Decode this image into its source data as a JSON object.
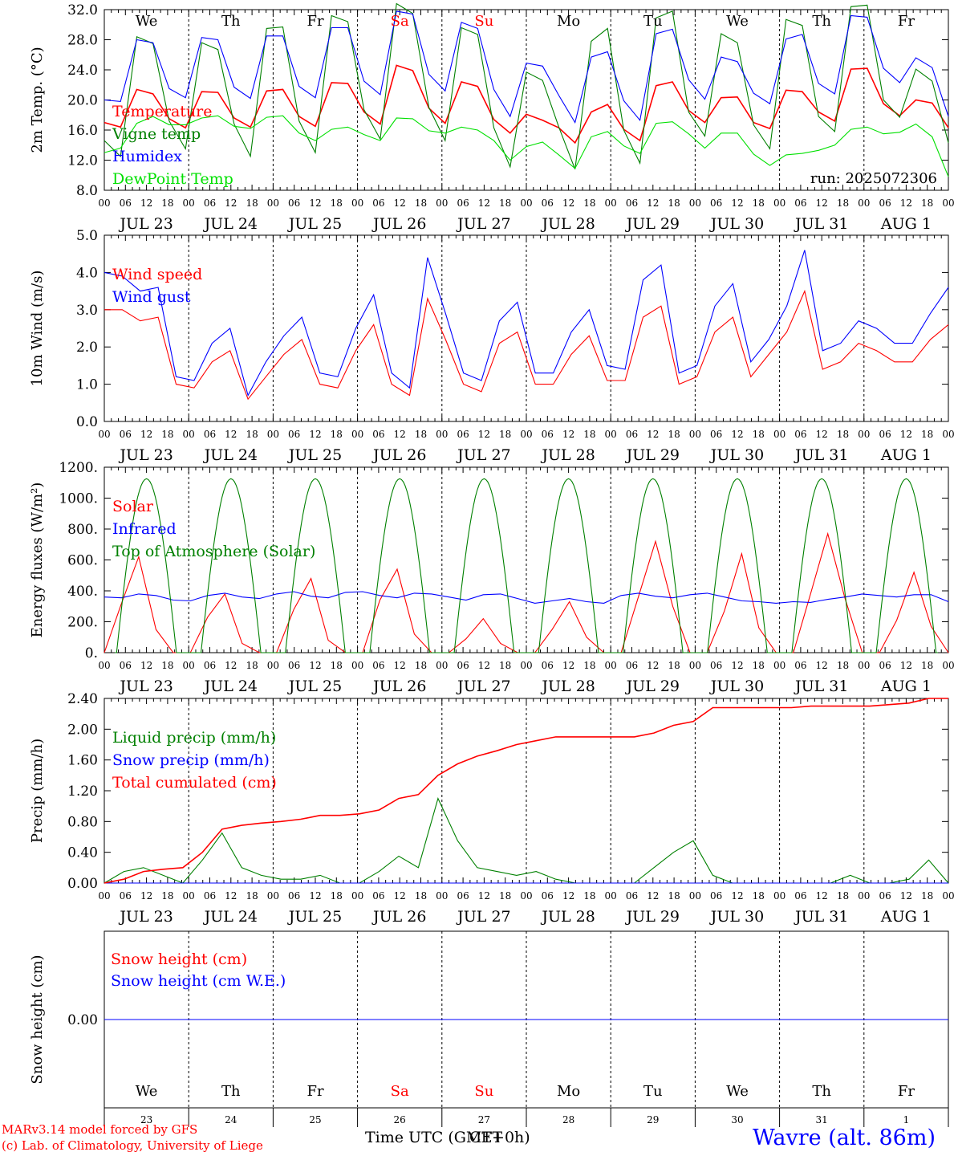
{
  "run_label": "run: 2025072306",
  "date_labels": [
    "JUL 23",
    "JUL 24",
    "JUL 25",
    "JUL 26",
    "JUL 27",
    "JUL 28",
    "JUL 29",
    "JUL 30",
    "JUL 31",
    "AUG  1"
  ],
  "hour_labels": [
    "00",
    "06",
    "12",
    "18"
  ],
  "last_hour_label": "00",
  "weekdays": [
    "We",
    "Th",
    "Fr",
    "Sa",
    "Su",
    "Mo",
    "Tu",
    "We",
    "Th",
    "Fr"
  ],
  "weekend_days": [
    "Sa",
    "Su"
  ],
  "day_numbers": [
    "23",
    "24",
    "25",
    "26",
    "27",
    "28",
    "29",
    "30",
    "31",
    "1"
  ],
  "footer": {
    "model_line": "MARv3.14 model forced by GFS",
    "credit_line": "(c) Lab. of Climatology, University of Liege",
    "time_axis_label": "Time UTC (GMT+0h)",
    "time_axis_overprint": "CET",
    "location": "Wavre (alt. 86m)"
  },
  "colors": {
    "red": "#ff0000",
    "green": "#008000",
    "blue": "#0000ff",
    "lime": "#00e000",
    "weekend": "#ff0000",
    "footer_red": "#ff0000",
    "location_blue": "#0000ff"
  },
  "chart_data": [
    {
      "type": "line",
      "ylabel": "2m Temp. (°C)",
      "ylim": [
        8,
        32
      ],
      "yticks": [
        "8.0",
        "12.0",
        "16.0",
        "20.0",
        "24.0",
        "28.0",
        "32.0"
      ],
      "x_start": "2025-07-23T00:00Z",
      "x_step_hours": 6,
      "series": [
        {
          "name": "Temperature",
          "color": "#ff0000",
          "values": [
            17.0,
            16.4,
            21.4,
            20.8,
            17.5,
            16.3,
            21.1,
            21.0,
            17.6,
            16.4,
            21.2,
            21.4,
            17.8,
            16.5,
            22.3,
            22.2,
            18.4,
            16.8,
            24.6,
            23.9,
            18.9,
            16.9,
            22.4,
            21.8,
            17.4,
            15.6,
            18.1,
            17.3,
            16.3,
            14.3,
            18.4,
            19.4,
            16.1,
            14.6,
            21.9,
            22.4,
            18.6,
            17.0,
            20.3,
            20.4,
            17.0,
            16.2,
            21.3,
            21.1,
            18.4,
            17.2,
            24.1,
            24.2,
            19.5,
            17.9,
            20.0,
            19.6,
            16.3
          ]
        },
        {
          "name": "Vigne temp",
          "color": "#008000",
          "values": [
            14.6,
            12.5,
            28.4,
            27.5,
            17.2,
            13.5,
            27.6,
            26.7,
            16.8,
            12.5,
            29.5,
            29.7,
            17.2,
            13.0,
            31.2,
            30.4,
            18.7,
            14.8,
            32.8,
            31.5,
            19.0,
            14.6,
            29.6,
            28.7,
            16.3,
            11.1,
            23.7,
            22.6,
            16.4,
            10.8,
            27.8,
            29.5,
            16.0,
            11.6,
            30.9,
            31.8,
            18.4,
            15.2,
            28.8,
            27.6,
            16.7,
            13.5,
            30.7,
            29.9,
            17.8,
            15.8,
            32.4,
            32.6,
            20.0,
            17.7,
            24.1,
            22.5,
            14.3
          ]
        },
        {
          "name": "Humidex",
          "color": "#0000ff",
          "values": [
            20.0,
            19.8,
            28.0,
            27.6,
            21.5,
            20.3,
            28.3,
            28.0,
            21.7,
            20.2,
            28.5,
            28.5,
            21.8,
            20.3,
            29.6,
            29.6,
            22.5,
            20.7,
            31.8,
            31.4,
            23.4,
            21.2,
            30.3,
            29.5,
            21.4,
            17.8,
            24.9,
            24.5,
            20.6,
            17.0,
            25.7,
            26.4,
            19.9,
            17.3,
            28.8,
            29.4,
            22.7,
            20.1,
            25.7,
            25.1,
            20.9,
            19.5,
            28.1,
            28.7,
            22.2,
            20.8,
            31.2,
            31.0,
            24.2,
            22.3,
            25.6,
            24.3,
            17.8
          ]
        },
        {
          "name": "DewPoint Temp",
          "color": "#00e000",
          "values": [
            13.0,
            13.6,
            16.9,
            17.8,
            16.7,
            16.7,
            17.6,
            17.9,
            16.5,
            16.2,
            17.7,
            17.9,
            15.6,
            14.6,
            16.1,
            16.4,
            15.4,
            14.6,
            17.6,
            17.5,
            15.9,
            15.6,
            16.4,
            16.0,
            14.6,
            12.0,
            13.8,
            14.4,
            12.7,
            10.9,
            15.1,
            15.8,
            13.9,
            12.9,
            16.9,
            17.1,
            15.5,
            13.6,
            15.6,
            15.6,
            12.8,
            11.3,
            12.7,
            12.9,
            13.3,
            14.0,
            16.1,
            16.4,
            15.5,
            15.7,
            16.8,
            15.1,
            9.8
          ]
        }
      ]
    },
    {
      "type": "line",
      "ylabel": "10m Wind (m/s)",
      "ylim": [
        0,
        5
      ],
      "yticks": [
        "0.0",
        "1.0",
        "2.0",
        "3.0",
        "4.0",
        "5.0"
      ],
      "x_start": "2025-07-23T00:00Z",
      "x_step_hours": 6,
      "series": [
        {
          "name": "Wind speed",
          "color": "#ff0000",
          "values": [
            3.0,
            3.0,
            2.7,
            2.8,
            1.0,
            0.9,
            1.6,
            1.9,
            0.6,
            1.2,
            1.8,
            2.2,
            1.0,
            0.9,
            1.9,
            2.6,
            1.0,
            0.7,
            3.3,
            2.2,
            1.0,
            0.8,
            2.1,
            2.4,
            1.0,
            1.0,
            1.8,
            2.3,
            1.1,
            1.1,
            2.8,
            3.1,
            1.0,
            1.2,
            2.4,
            2.8,
            1.2,
            1.8,
            2.4,
            3.5,
            1.4,
            1.6,
            2.1,
            1.9,
            1.6,
            1.6,
            2.2,
            2.6
          ]
        },
        {
          "name": "Wind gust",
          "color": "#0000ff",
          "values": [
            4.0,
            3.9,
            3.5,
            3.6,
            1.2,
            1.1,
            2.1,
            2.5,
            0.7,
            1.6,
            2.3,
            2.8,
            1.3,
            1.2,
            2.5,
            3.4,
            1.3,
            0.9,
            4.4,
            2.9,
            1.3,
            1.1,
            2.7,
            3.2,
            1.3,
            1.3,
            2.4,
            3.0,
            1.5,
            1.4,
            3.8,
            4.2,
            1.3,
            1.5,
            3.1,
            3.7,
            1.6,
            2.2,
            3.1,
            4.6,
            1.9,
            2.1,
            2.7,
            2.5,
            2.1,
            2.1,
            2.9,
            3.6
          ]
        }
      ]
    },
    {
      "type": "line",
      "ylabel": "Energy fluxes (W/m²)",
      "ylim": [
        0,
        1200
      ],
      "yticks": [
        "0.",
        "200.",
        "400.",
        "600.",
        "800.",
        "1000.",
        "1200."
      ],
      "x_start": "2025-07-23T00:00Z",
      "x_step_hours": 6,
      "series": [
        {
          "name": "Solar",
          "color": "#ff0000",
          "values": [
            0,
            320,
            620,
            150,
            0,
            0,
            230,
            380,
            60,
            0,
            0,
            280,
            480,
            80,
            0,
            0,
            340,
            540,
            120,
            0,
            0,
            90,
            220,
            60,
            0,
            0,
            150,
            330,
            100,
            0,
            0,
            360,
            720,
            300,
            0,
            0,
            270,
            640,
            160,
            0,
            0,
            380,
            770,
            350,
            0,
            0,
            210,
            520,
            170,
            0
          ]
        },
        {
          "name": "Infrared",
          "color": "#0000ff",
          "values": [
            360,
            355,
            380,
            370,
            340,
            335,
            370,
            385,
            360,
            350,
            380,
            395,
            365,
            355,
            390,
            395,
            370,
            355,
            385,
            380,
            360,
            340,
            375,
            380,
            350,
            320,
            335,
            350,
            330,
            320,
            370,
            385,
            365,
            355,
            375,
            385,
            360,
            335,
            330,
            320,
            330,
            325,
            345,
            360,
            380,
            370,
            360,
            375,
            375,
            330
          ]
        },
        {
          "name": "Top of Atmosphere (Solar)",
          "color": "#008000",
          "type": "daily_envelope",
          "peak": 1125
        }
      ]
    },
    {
      "type": "line",
      "ylabel": "Precip (mm/h)",
      "ylim": [
        0,
        2.4
      ],
      "yticks": [
        "0.00",
        "0.40",
        "0.80",
        "1.20",
        "1.60",
        "2.00",
        "2.40"
      ],
      "x_start": "2025-07-23T00:00Z",
      "x_step_hours": 6,
      "series": [
        {
          "name": "Liquid precip (mm/h)",
          "color": "#008000",
          "values": [
            0,
            0.15,
            0.2,
            0.1,
            0,
            0.3,
            0.65,
            0.2,
            0.1,
            0.05,
            0.05,
            0.1,
            0,
            0,
            0.15,
            0.35,
            0.2,
            1.1,
            0.55,
            0.2,
            0.15,
            0.1,
            0.15,
            0.05,
            0,
            0,
            0,
            0,
            0.2,
            0.4,
            0.55,
            0.1,
            0,
            0,
            0,
            0,
            0,
            0,
            0.1,
            0,
            0,
            0.05,
            0.3,
            0
          ]
        },
        {
          "name": "Snow precip (mm/h)",
          "color": "#0000ff",
          "values": [
            0,
            0,
            0,
            0,
            0,
            0,
            0,
            0,
            0,
            0,
            0,
            0,
            0,
            0,
            0,
            0,
            0,
            0,
            0,
            0,
            0,
            0,
            0,
            0,
            0,
            0,
            0,
            0,
            0,
            0,
            0,
            0,
            0,
            0,
            0,
            0,
            0,
            0,
            0,
            0,
            0,
            0,
            0,
            0
          ]
        },
        {
          "name": "Total cumulated (cm)",
          "color": "#ff0000",
          "values": [
            0,
            0.05,
            0.15,
            0.18,
            0.2,
            0.4,
            0.7,
            0.75,
            0.78,
            0.8,
            0.83,
            0.88,
            0.88,
            0.9,
            0.95,
            1.1,
            1.15,
            1.4,
            1.55,
            1.65,
            1.72,
            1.8,
            1.85,
            1.9,
            1.9,
            1.9,
            1.9,
            1.9,
            1.95,
            2.05,
            2.1,
            2.28,
            2.28,
            2.28,
            2.28,
            2.28,
            2.3,
            2.3,
            2.3,
            2.3,
            2.32,
            2.34,
            2.4,
            2.4
          ]
        }
      ]
    },
    {
      "type": "line",
      "ylabel": "Snow height (cm)",
      "yticks": [
        "0.00"
      ],
      "series": [
        {
          "name": "Snow height (cm)",
          "color": "#ff0000",
          "values": [
            0,
            0
          ]
        },
        {
          "name": "Snow height (cm W.E.)",
          "color": "#0000ff",
          "values": [
            0,
            0
          ]
        }
      ]
    }
  ]
}
